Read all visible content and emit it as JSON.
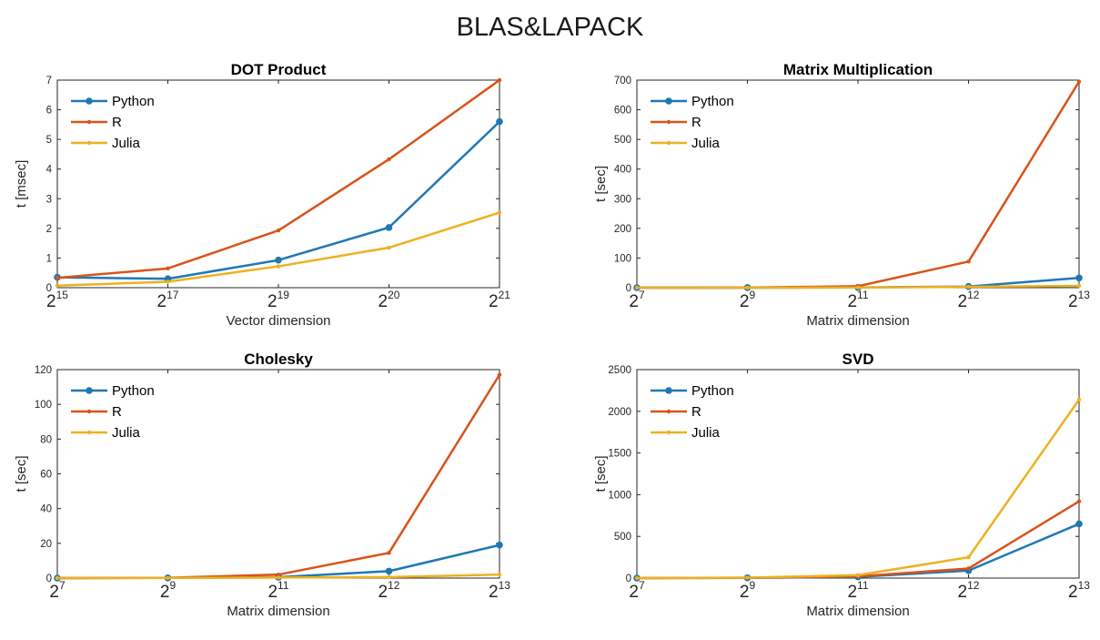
{
  "figure": {
    "title": "BLAS&LAPACK"
  },
  "colors": {
    "Python": "#1f77b4",
    "R": "#d95319",
    "Julia": "#edb120",
    "axis": "#262626"
  },
  "chart_data": [
    {
      "type": "line",
      "title": "DOT Product",
      "xlabel": "Vector dimension",
      "ylabel": "t [msec]",
      "x_tick_labels": [
        {
          "base": "2",
          "exp": "15"
        },
        {
          "base": "2",
          "exp": "17"
        },
        {
          "base": "2",
          "exp": "19"
        },
        {
          "base": "2",
          "exp": "20"
        },
        {
          "base": "2",
          "exp": "21"
        }
      ],
      "y_ticks": [
        0,
        1,
        2,
        3,
        4,
        5,
        6,
        7
      ],
      "ylim": [
        0,
        7
      ],
      "legend_position": "top-left",
      "series": [
        {
          "name": "Python",
          "values": [
            0.35,
            0.3,
            0.93,
            2.03,
            5.6
          ]
        },
        {
          "name": "R",
          "values": [
            0.33,
            0.65,
            1.93,
            4.33,
            7.0
          ]
        },
        {
          "name": "Julia",
          "values": [
            0.07,
            0.2,
            0.72,
            1.35,
            2.53
          ]
        }
      ]
    },
    {
      "type": "line",
      "title": "Matrix Multiplication",
      "xlabel": "Matrix dimension",
      "ylabel": "t [sec]",
      "x_tick_labels": [
        {
          "base": "2",
          "exp": "7"
        },
        {
          "base": "2",
          "exp": "9"
        },
        {
          "base": "2",
          "exp": "11"
        },
        {
          "base": "2",
          "exp": "12"
        },
        {
          "base": "2",
          "exp": "13"
        }
      ],
      "y_ticks": [
        0,
        100,
        200,
        300,
        400,
        500,
        600,
        700
      ],
      "ylim": [
        0,
        700
      ],
      "legend_position": "top-left",
      "series": [
        {
          "name": "Python",
          "values": [
            0,
            0.1,
            0.6,
            4,
            33
          ]
        },
        {
          "name": "R",
          "values": [
            0,
            0.2,
            5,
            88,
            695
          ]
        },
        {
          "name": "Julia",
          "values": [
            0,
            0.1,
            0.5,
            3,
            6
          ]
        }
      ]
    },
    {
      "type": "line",
      "title": "Cholesky",
      "xlabel": "Matrix dimension",
      "ylabel": "t [sec]",
      "x_tick_labels": [
        {
          "base": "2",
          "exp": "7"
        },
        {
          "base": "2",
          "exp": "9"
        },
        {
          "base": "2",
          "exp": "11"
        },
        {
          "base": "2",
          "exp": "12"
        },
        {
          "base": "2",
          "exp": "13"
        }
      ],
      "y_ticks": [
        0,
        20,
        40,
        60,
        80,
        100,
        120
      ],
      "ylim": [
        0,
        120
      ],
      "legend_position": "top-left",
      "series": [
        {
          "name": "Python",
          "values": [
            0,
            0.1,
            0.5,
            4,
            19
          ]
        },
        {
          "name": "R",
          "values": [
            0,
            0.2,
            2,
            14.5,
            117
          ]
        },
        {
          "name": "Julia",
          "values": [
            0,
            0.1,
            0.3,
            0.6,
            2
          ]
        }
      ]
    },
    {
      "type": "line",
      "title": "SVD",
      "xlabel": "Matrix dimension",
      "ylabel": "t [sec]",
      "x_tick_labels": [
        {
          "base": "2",
          "exp": "7"
        },
        {
          "base": "2",
          "exp": "9"
        },
        {
          "base": "2",
          "exp": "11"
        },
        {
          "base": "2",
          "exp": "12"
        },
        {
          "base": "2",
          "exp": "13"
        }
      ],
      "y_ticks": [
        0,
        500,
        1000,
        1500,
        2000,
        2500
      ],
      "ylim": [
        0,
        2500
      ],
      "legend_position": "top-left",
      "series": [
        {
          "name": "Python",
          "values": [
            0,
            3,
            15,
            90,
            650
          ]
        },
        {
          "name": "R",
          "values": [
            0,
            4,
            20,
            115,
            920
          ]
        },
        {
          "name": "Julia",
          "values": [
            0,
            6,
            35,
            250,
            2140
          ]
        }
      ]
    }
  ]
}
